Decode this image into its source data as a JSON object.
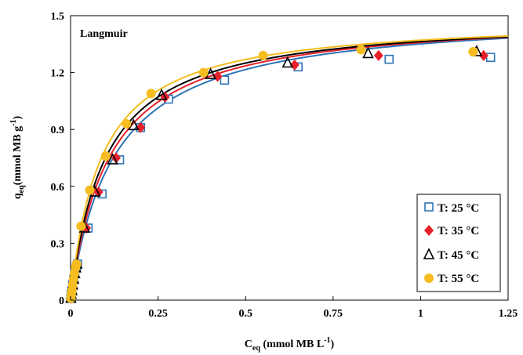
{
  "chart_data": {
    "type": "scatter",
    "annotation": "Langmuir",
    "xlabel": {
      "main": "C",
      "sub": "eq",
      "rest": " (mmol MB L",
      "sup": "-1",
      "end": ")"
    },
    "ylabel": {
      "main": "q",
      "sub": "eq",
      "rest": "(mmol MB g",
      "sup": "-1",
      "end": ")"
    },
    "xlim": [
      0,
      1.25
    ],
    "ylim": [
      0,
      1.5
    ],
    "xticks": [
      0,
      0.25,
      0.5,
      0.75,
      1,
      1.25
    ],
    "xtick_labels": [
      "0",
      "0.25",
      "0.5",
      "0.75",
      "1",
      "1.25"
    ],
    "yticks": [
      0,
      0.3,
      0.6,
      0.9,
      1.2,
      1.5
    ],
    "ytick_labels": [
      "0",
      "0.3",
      "0.6",
      "0.9",
      "1.2",
      "1.5"
    ],
    "grid": false,
    "legend_position": "bottom-right",
    "series": [
      {
        "name": "T: 25 °C",
        "marker": "open-square",
        "color": "#2e75b6",
        "points": [
          [
            0.001,
            0.01
          ],
          [
            0.002,
            0.03
          ],
          [
            0.004,
            0.05
          ],
          [
            0.006,
            0.08
          ],
          [
            0.009,
            0.11
          ],
          [
            0.012,
            0.14
          ],
          [
            0.016,
            0.17
          ],
          [
            0.02,
            0.19
          ],
          [
            0.05,
            0.38
          ],
          [
            0.09,
            0.56
          ],
          [
            0.14,
            0.74
          ],
          [
            0.2,
            0.91
          ],
          [
            0.28,
            1.06
          ],
          [
            0.44,
            1.16
          ],
          [
            0.65,
            1.23
          ],
          [
            0.91,
            1.27
          ],
          [
            1.2,
            1.28
          ]
        ],
        "fit": {
          "qmax": 1.52,
          "K": 8.0
        }
      },
      {
        "name": "T: 35 °C",
        "marker": "filled-diamond",
        "color": "#e8202a",
        "points": [
          [
            0.001,
            0.01
          ],
          [
            0.002,
            0.03
          ],
          [
            0.004,
            0.05
          ],
          [
            0.006,
            0.08
          ],
          [
            0.009,
            0.11
          ],
          [
            0.012,
            0.14
          ],
          [
            0.015,
            0.17
          ],
          [
            0.019,
            0.19
          ],
          [
            0.045,
            0.38
          ],
          [
            0.08,
            0.57
          ],
          [
            0.13,
            0.75
          ],
          [
            0.2,
            0.91
          ],
          [
            0.27,
            1.07
          ],
          [
            0.42,
            1.18
          ],
          [
            0.64,
            1.24
          ],
          [
            0.88,
            1.29
          ],
          [
            1.18,
            1.29
          ]
        ],
        "fit": {
          "qmax": 1.51,
          "K": 9.0
        }
      },
      {
        "name": "T: 45 °C",
        "marker": "open-triangle",
        "color": "#000000",
        "points": [
          [
            0.001,
            0.01
          ],
          [
            0.002,
            0.03
          ],
          [
            0.004,
            0.05
          ],
          [
            0.006,
            0.08
          ],
          [
            0.009,
            0.11
          ],
          [
            0.012,
            0.14
          ],
          [
            0.015,
            0.17
          ],
          [
            0.018,
            0.19
          ],
          [
            0.04,
            0.38
          ],
          [
            0.07,
            0.57
          ],
          [
            0.12,
            0.74
          ],
          [
            0.18,
            0.92
          ],
          [
            0.26,
            1.08
          ],
          [
            0.4,
            1.19
          ],
          [
            0.62,
            1.25
          ],
          [
            0.85,
            1.3
          ],
          [
            1.16,
            1.31
          ]
        ],
        "fit": {
          "qmax": 1.5,
          "K": 10.0
        }
      },
      {
        "name": "T: 55 °C",
        "marker": "filled-circle",
        "color": "#f5bd1f",
        "points": [
          [
            0.001,
            0.01
          ],
          [
            0.002,
            0.03
          ],
          [
            0.004,
            0.05
          ],
          [
            0.006,
            0.08
          ],
          [
            0.008,
            0.11
          ],
          [
            0.011,
            0.14
          ],
          [
            0.014,
            0.17
          ],
          [
            0.017,
            0.19
          ],
          [
            0.03,
            0.39
          ],
          [
            0.055,
            0.58
          ],
          [
            0.1,
            0.76
          ],
          [
            0.16,
            0.93
          ],
          [
            0.23,
            1.09
          ],
          [
            0.38,
            1.2
          ],
          [
            0.55,
            1.29
          ],
          [
            0.83,
            1.32
          ],
          [
            1.15,
            1.31
          ]
        ],
        "fit": {
          "qmax": 1.49,
          "K": 11.5
        }
      }
    ]
  }
}
